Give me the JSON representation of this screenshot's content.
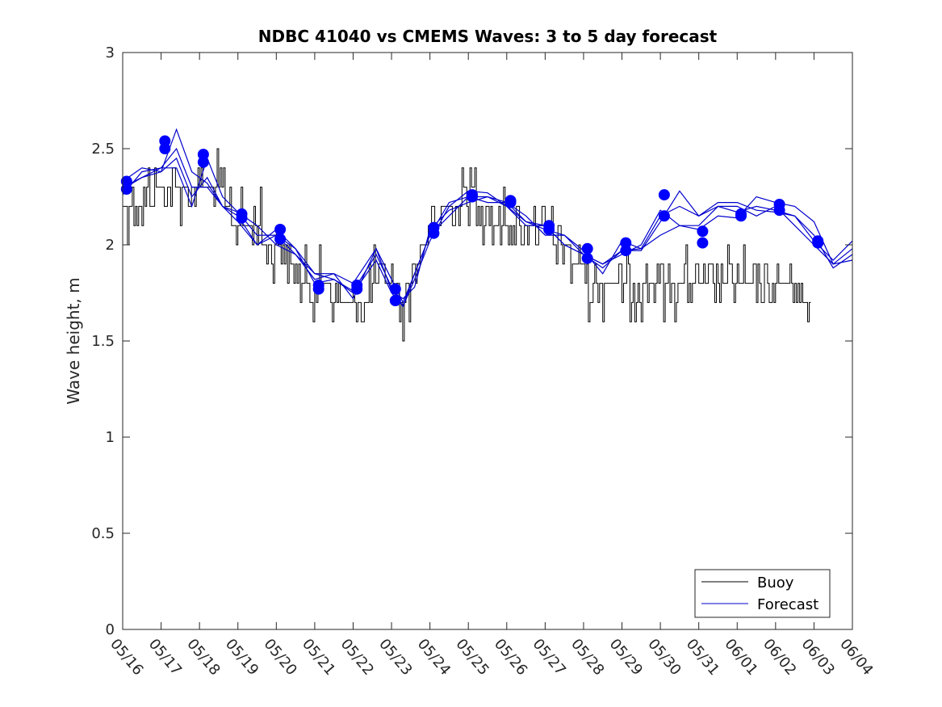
{
  "chart_data": {
    "type": "line",
    "title": "NDBC 41040 vs CMEMS Waves: 3 to 5 day forecast",
    "xlabel": "",
    "ylabel": "Wave height, m",
    "x_ticks": [
      "05/16",
      "05/17",
      "05/18",
      "05/19",
      "05/20",
      "05/21",
      "05/22",
      "05/23",
      "05/24",
      "05/25",
      "05/26",
      "05/27",
      "05/28",
      "05/29",
      "05/30",
      "05/31",
      "06/01",
      "06/02",
      "06/03",
      "06/04"
    ],
    "y_ticks": [
      "0",
      "0.5",
      "1",
      "1.5",
      "2",
      "2.5",
      "3"
    ],
    "xlim": [
      0,
      19
    ],
    "ylim": [
      0,
      3
    ],
    "grid": false,
    "legend": {
      "position": "bottom-right",
      "entries": [
        "Buoy",
        "Forecast"
      ]
    },
    "colors": {
      "buoy": "#000000",
      "forecast": "#0000cc",
      "marker": "#0000ff"
    },
    "buoy": {
      "name": "Buoy",
      "anchors_x": [
        0.0,
        0.3,
        0.6,
        1.0,
        1.4,
        1.8,
        2.2,
        2.6,
        3.0,
        3.4,
        3.8,
        4.2,
        4.6,
        5.0,
        5.4,
        5.8,
        6.2,
        6.6,
        7.0,
        7.3,
        7.6,
        8.0,
        8.4,
        8.8,
        9.2,
        9.6,
        10.0,
        10.4,
        10.8,
        11.2,
        11.6,
        12.0,
        12.4,
        12.8,
        13.2,
        13.6,
        14.0,
        14.4,
        14.8,
        15.2,
        15.6,
        16.0,
        16.4,
        16.8,
        17.2,
        17.6,
        17.9
      ],
      "anchors_y": [
        2.15,
        2.2,
        2.25,
        2.25,
        2.3,
        2.25,
        2.25,
        2.25,
        2.1,
        2.1,
        2.0,
        1.95,
        1.85,
        1.8,
        1.75,
        1.7,
        1.7,
        1.8,
        1.8,
        1.7,
        1.9,
        2.05,
        2.2,
        2.25,
        2.25,
        2.15,
        2.1,
        2.05,
        2.1,
        2.05,
        1.95,
        1.85,
        1.8,
        1.8,
        1.8,
        1.8,
        1.8,
        1.8,
        1.75,
        1.75,
        1.8,
        1.8,
        1.85,
        1.8,
        1.8,
        1.75,
        1.7
      ]
    },
    "forecast_series": [
      {
        "name": "Forecast",
        "x": [
          0.0,
          0.5,
          1.0,
          1.4,
          1.8,
          2.2,
          2.6,
          3.0,
          3.5,
          4.0,
          4.5,
          5.0,
          5.5,
          6.0,
          6.6,
          7.0,
          7.3,
          7.6,
          8.0,
          8.5,
          9.0,
          9.5,
          10.0,
          10.5,
          11.0,
          11.5,
          12.0,
          12.5,
          13.0,
          13.5,
          14.0,
          14.5,
          15.0,
          15.5,
          16.0,
          16.5,
          17.0,
          17.5,
          18.0,
          18.5,
          19.0
        ],
        "y": [
          2.33,
          2.4,
          2.38,
          2.6,
          2.38,
          2.32,
          2.2,
          2.17,
          2.05,
          2.05,
          1.95,
          1.85,
          1.85,
          1.8,
          1.98,
          1.82,
          1.7,
          1.85,
          2.05,
          2.15,
          2.25,
          2.25,
          2.2,
          2.1,
          2.1,
          2.0,
          1.95,
          1.9,
          1.95,
          2.0,
          2.18,
          2.1,
          2.1,
          2.2,
          2.2,
          2.15,
          2.2,
          2.1,
          2.0,
          1.9,
          1.92
        ]
      },
      {
        "name": "Forecast",
        "x": [
          0.0,
          0.5,
          1.0,
          1.4,
          1.8,
          2.2,
          2.6,
          3.0,
          3.5,
          4.0,
          4.5,
          5.0,
          5.5,
          6.0,
          6.6,
          7.0,
          7.3,
          7.6,
          8.0,
          8.5,
          9.0,
          9.5,
          10.0,
          10.5,
          11.0,
          11.5,
          12.0,
          12.5,
          13.0,
          13.5,
          14.0,
          14.5,
          15.0,
          15.5,
          16.0,
          16.5,
          17.0,
          17.5,
          18.0,
          18.5,
          19.0
        ],
        "y": [
          2.29,
          2.35,
          2.38,
          2.45,
          2.25,
          2.35,
          2.2,
          2.12,
          2.0,
          2.05,
          1.98,
          1.8,
          1.82,
          1.76,
          1.95,
          1.78,
          1.68,
          1.82,
          2.02,
          2.2,
          2.28,
          2.27,
          2.2,
          2.12,
          2.08,
          2.05,
          1.95,
          1.9,
          1.97,
          1.98,
          2.15,
          2.2,
          2.15,
          2.2,
          2.17,
          2.2,
          2.18,
          2.15,
          2.05,
          1.88,
          1.95
        ]
      },
      {
        "name": "Forecast",
        "x": [
          0.0,
          0.5,
          1.0,
          1.4,
          1.8,
          2.2,
          2.6,
          3.0,
          3.5,
          4.0,
          4.5,
          5.0,
          5.5,
          6.0,
          6.6,
          7.0,
          7.3,
          7.6,
          8.0,
          8.5,
          9.0,
          9.5,
          10.0,
          10.5,
          11.0,
          11.5,
          12.0,
          12.5,
          13.0,
          13.5,
          14.0,
          14.5,
          15.0,
          15.5,
          16.0,
          16.5,
          17.0,
          17.5,
          18.0,
          18.5,
          19.0
        ],
        "y": [
          2.26,
          2.38,
          2.4,
          2.4,
          2.2,
          2.45,
          2.25,
          2.17,
          2.1,
          2.0,
          1.95,
          1.82,
          1.85,
          1.72,
          1.98,
          1.76,
          1.72,
          1.78,
          2.08,
          2.18,
          2.22,
          2.25,
          2.22,
          2.15,
          2.05,
          2.05,
          1.97,
          1.85,
          2.02,
          1.98,
          2.05,
          2.1,
          2.08,
          2.15,
          2.14,
          2.25,
          2.22,
          2.2,
          2.12,
          1.9,
          1.98
        ]
      },
      {
        "name": "Forecast",
        "x": [
          0.0,
          0.5,
          1.0,
          1.4,
          1.8,
          2.2,
          2.6,
          3.0,
          3.5,
          4.0,
          4.5,
          5.0,
          5.5,
          6.0,
          6.6,
          7.0,
          7.3,
          7.6,
          8.0,
          8.5,
          9.0,
          9.5,
          10.0,
          10.5,
          11.0,
          11.5,
          12.0,
          12.5,
          13.0,
          13.5,
          14.0,
          14.5,
          15.0,
          15.5,
          16.0,
          16.5,
          17.0,
          17.5,
          18.0,
          18.5,
          19.0
        ],
        "y": [
          2.3,
          2.35,
          2.4,
          2.5,
          2.3,
          2.3,
          2.2,
          2.15,
          2.0,
          2.08,
          1.98,
          1.85,
          1.82,
          1.75,
          1.92,
          1.75,
          1.68,
          1.85,
          2.05,
          2.22,
          2.25,
          2.22,
          2.22,
          2.12,
          2.1,
          2.0,
          1.95,
          1.88,
          1.97,
          1.97,
          2.12,
          2.28,
          2.15,
          2.22,
          2.22,
          2.18,
          2.17,
          2.15,
          2.02,
          1.92,
          2.02
        ]
      }
    ],
    "markers": {
      "x": [
        0.1,
        0.1,
        1.1,
        1.1,
        2.1,
        2.1,
        3.1,
        3.1,
        4.1,
        4.1,
        5.1,
        5.1,
        6.1,
        6.1,
        7.1,
        7.1,
        8.1,
        8.1,
        9.1,
        9.1,
        10.1,
        10.1,
        11.1,
        11.1,
        12.1,
        12.1,
        13.1,
        13.1,
        14.1,
        14.1,
        15.1,
        15.1,
        16.1,
        16.1,
        17.1,
        17.1,
        18.1,
        18.1
      ],
      "y": [
        2.33,
        2.29,
        2.54,
        2.5,
        2.47,
        2.43,
        2.16,
        2.14,
        2.08,
        2.03,
        1.79,
        1.77,
        1.79,
        1.77,
        1.77,
        1.71,
        2.09,
        2.06,
        2.26,
        2.25,
        2.23,
        2.22,
        2.1,
        2.08,
        1.98,
        1.93,
        2.01,
        1.97,
        2.26,
        2.15,
        2.07,
        2.01,
        2.16,
        2.15,
        2.21,
        2.18,
        2.02,
        2.01
      ]
    }
  }
}
